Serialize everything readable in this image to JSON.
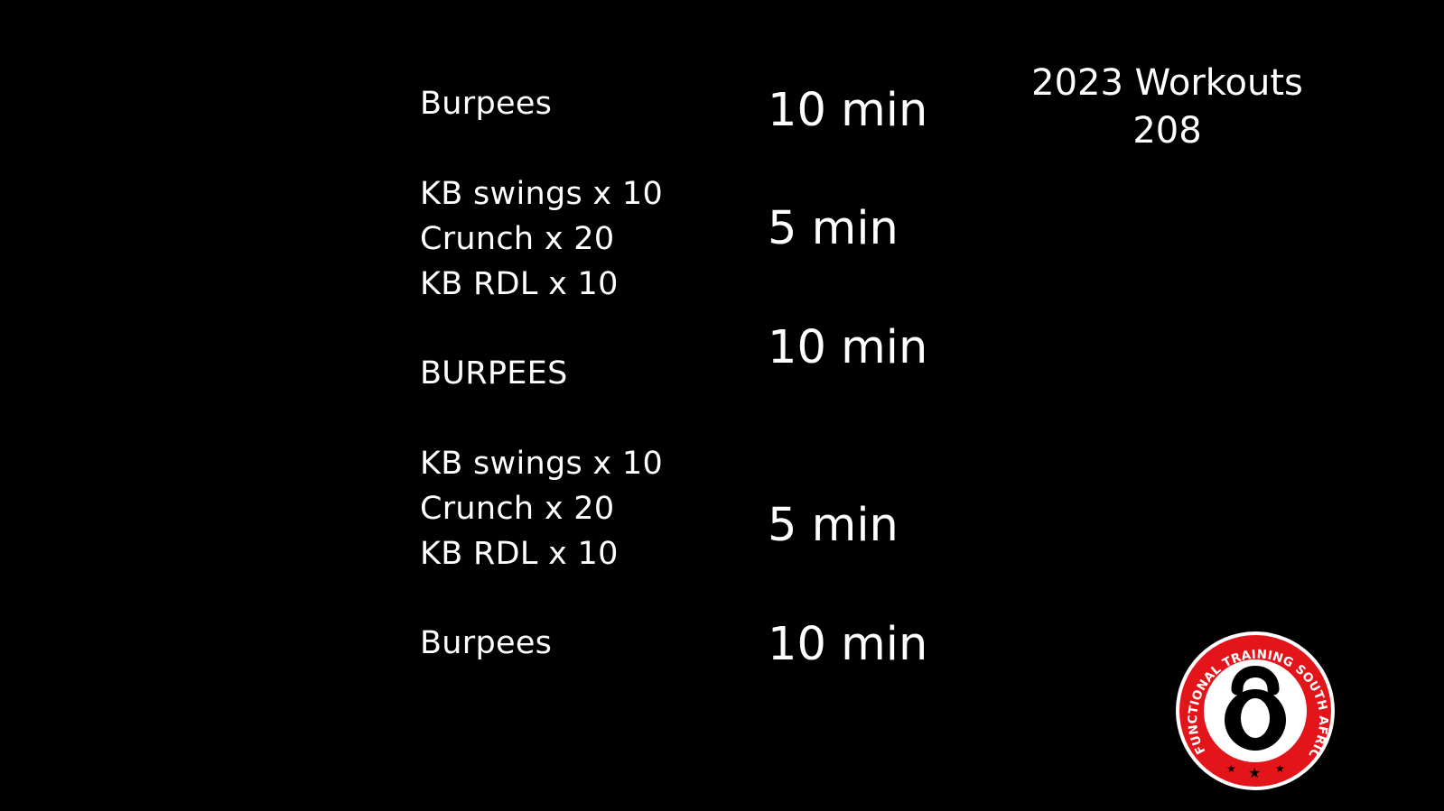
{
  "workout": {
    "blocks": [
      {
        "lines": [
          "Burpees"
        ],
        "duration": "10 min"
      },
      {
        "lines": [
          "KB swings x 10",
          "Crunch x 20",
          "KB RDL x 10"
        ],
        "duration": "5 min"
      },
      {
        "lines": [
          "BURPEES"
        ],
        "duration": "10 min"
      },
      {
        "lines": [
          "KB swings x 10",
          "Crunch x 20",
          "KB RDL x 10"
        ],
        "duration": "5 min"
      },
      {
        "lines": [
          "Burpees"
        ],
        "duration": "10 min"
      }
    ]
  },
  "header": {
    "title": "2023 Workouts",
    "number": "208"
  },
  "logo": {
    "text": "FUNCTIONAL TRAINING SOUTH AFRICA",
    "icon": "kettlebell-icon",
    "colors": {
      "ring": "#e4141b",
      "inner": "#ffffff",
      "mark": "#000000"
    }
  },
  "colors": {
    "background": "#000000",
    "text": "#ffffff"
  }
}
